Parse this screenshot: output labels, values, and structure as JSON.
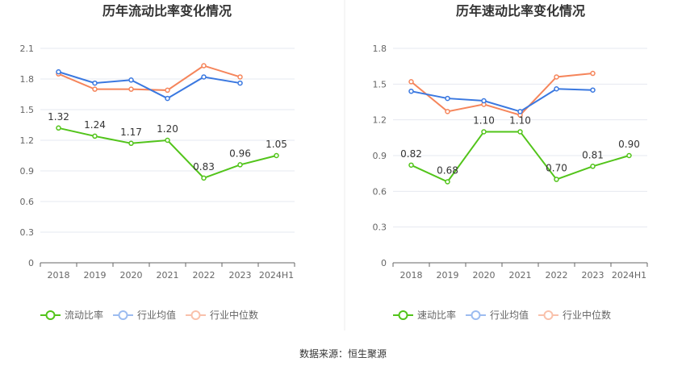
{
  "chart_data": [
    {
      "type": "line",
      "title": "历年流动比率变化情况",
      "categories": [
        "2018",
        "2019",
        "2020",
        "2021",
        "2022",
        "2023",
        "2024H1"
      ],
      "ylim": [
        0,
        2.1
      ],
      "yticks": [
        "0",
        "0.3",
        "0.6",
        "0.9",
        "1.2",
        "1.5",
        "1.8",
        "2.1"
      ],
      "series": [
        {
          "name": "流动比率",
          "color": "#52c41a",
          "values": [
            1.32,
            1.24,
            1.17,
            1.2,
            0.83,
            0.96,
            1.05
          ],
          "labels": [
            "1.32",
            "1.24",
            "1.17",
            "1.20",
            "0.83",
            "0.96",
            "1.05"
          ]
        },
        {
          "name": "行业均值",
          "color": "#3a78e0",
          "values": [
            1.87,
            1.76,
            1.79,
            1.61,
            1.82,
            1.76,
            null
          ]
        },
        {
          "name": "行业中位数",
          "color": "#f5855b",
          "values": [
            1.85,
            1.7,
            1.7,
            1.69,
            1.93,
            1.82,
            null
          ]
        }
      ]
    },
    {
      "type": "line",
      "title": "历年速动比率变化情况",
      "categories": [
        "2018",
        "2019",
        "2020",
        "2021",
        "2022",
        "2023",
        "2024H1"
      ],
      "ylim": [
        0,
        1.8
      ],
      "yticks": [
        "0",
        "0.3",
        "0.6",
        "0.9",
        "1.2",
        "1.5",
        "1.8"
      ],
      "series": [
        {
          "name": "速动比率",
          "color": "#52c41a",
          "values": [
            0.82,
            0.68,
            1.1,
            1.1,
            0.7,
            0.81,
            0.9
          ],
          "labels": [
            "0.82",
            "0.68",
            "1.10",
            "1.10",
            "0.70",
            "0.81",
            "0.90"
          ]
        },
        {
          "name": "行业均值",
          "color": "#3a78e0",
          "values": [
            1.44,
            1.38,
            1.36,
            1.27,
            1.46,
            1.45,
            null
          ]
        },
        {
          "name": "行业中位数",
          "color": "#f5855b",
          "values": [
            1.52,
            1.27,
            1.33,
            1.24,
            1.56,
            1.59,
            null
          ]
        }
      ]
    }
  ],
  "source": "数据来源：恒生聚源"
}
